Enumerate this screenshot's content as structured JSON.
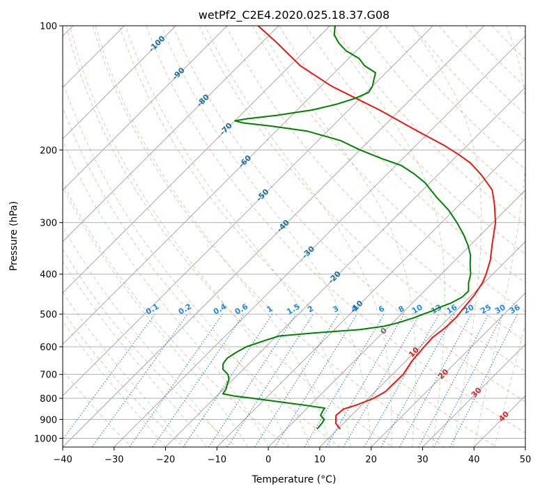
{
  "chart_data": {
    "type": "line",
    "chart_kind": "skew-t log-p diagram",
    "title": "wetPf2_C2E4.2020.025.18.37.G08",
    "xlabel": "Temperature (°C)",
    "ylabel": "Pressure (hPa)",
    "xlim": [
      -40,
      50
    ],
    "ylim": [
      1050,
      100
    ],
    "y_scale": "log",
    "grid": true,
    "x_ticks": [
      -40,
      -30,
      -20,
      -10,
      0,
      10,
      20,
      30,
      40,
      50
    ],
    "y_ticks": [
      100,
      200,
      300,
      400,
      500,
      600,
      700,
      800,
      900,
      1000
    ],
    "colors": {
      "temperature": "#e8170e",
      "dewpoint": "#008000",
      "dry_adiabat": "#f4825c",
      "moist_adiabat": "#66b366",
      "mixing_ratio": "#1f77d4",
      "isotherm": "#888888",
      "isotherm_label": "#1a6fa0",
      "mixing_ratio_label": "#1e88e5",
      "theta_e_label": "#d62728"
    },
    "series": [
      {
        "key": "temperature",
        "pressure": [
          950,
          920,
          880,
          850,
          830,
          800,
          770,
          740,
          700,
          650,
          600,
          570,
          540,
          510,
          480,
          450,
          420,
          400,
          370,
          340,
          300,
          270,
          250,
          230,
          215,
          205,
          195,
          180,
          160,
          140,
          125,
          110,
          100
        ],
        "values": [
          10.5,
          8.5,
          7,
          7.2,
          9,
          11,
          12,
          12,
          12.1,
          11.2,
          10.8,
          10.6,
          11.2,
          11.3,
          10.9,
          10.5,
          9.7,
          8.7,
          6.8,
          4.2,
          0.5,
          -3.4,
          -6.5,
          -11.5,
          -16,
          -20,
          -24.5,
          -32.5,
          -44,
          -58,
          -68,
          -77,
          -84
        ]
      },
      {
        "key": "dewpoint",
        "pressure": [
          950,
          920,
          900,
          880,
          860,
          845,
          830,
          815,
          800,
          790,
          780,
          760,
          740,
          720,
          700,
          680,
          660,
          640,
          620,
          600,
          580,
          565,
          555,
          545,
          535,
          525,
          510,
          500,
          490,
          480,
          470,
          455,
          440,
          420,
          400,
          380,
          360,
          340,
          320,
          300,
          280,
          260,
          240,
          228,
          218,
          210,
          200,
          190,
          180,
          175,
          172,
          170,
          168,
          165,
          160,
          155,
          150,
          145,
          140,
          135,
          130,
          125,
          120,
          115,
          110,
          105,
          100
        ],
        "values": [
          6,
          5.8,
          5.5,
          4,
          3.6,
          3.4,
          -1.5,
          -7,
          -12.5,
          -16.5,
          -19.2,
          -19.5,
          -20.2,
          -20.8,
          -22,
          -24,
          -25,
          -25.3,
          -24.7,
          -23.8,
          -21.5,
          -19.5,
          -13,
          -5,
          -1,
          1,
          3.2,
          4.3,
          5.5,
          6.3,
          7.5,
          8.5,
          8.6,
          7,
          5.7,
          3.8,
          2,
          -0.5,
          -3.5,
          -7,
          -11,
          -16,
          -21,
          -25,
          -29,
          -34,
          -40,
          -45.5,
          -54,
          -62,
          -68,
          -70,
          -68,
          -63,
          -57,
          -53.5,
          -51,
          -49.5,
          -50,
          -51,
          -52,
          -55.5,
          -58,
          -62,
          -65,
          -67.5,
          -69
        ]
      }
    ],
    "isotherm_labels": [
      "-100",
      "-90",
      "-80",
      "-70",
      "-60",
      "-50",
      "-40",
      "-30",
      "-20",
      "-10",
      "0",
      "10",
      "20",
      "30",
      "40"
    ],
    "mixing_ratio_labels": [
      "0.1",
      "0.2",
      "0.4",
      "0.6",
      "1",
      "1.5",
      "2",
      "3",
      "4",
      "6",
      "8",
      "10",
      "13",
      "16",
      "20",
      "25",
      "30",
      "36"
    ],
    "mixing_ratio_values": [
      0.1,
      0.2,
      0.4,
      0.6,
      1,
      1.5,
      2,
      3,
      4,
      6,
      8,
      10,
      13,
      16,
      20,
      25,
      30,
      36
    ]
  }
}
